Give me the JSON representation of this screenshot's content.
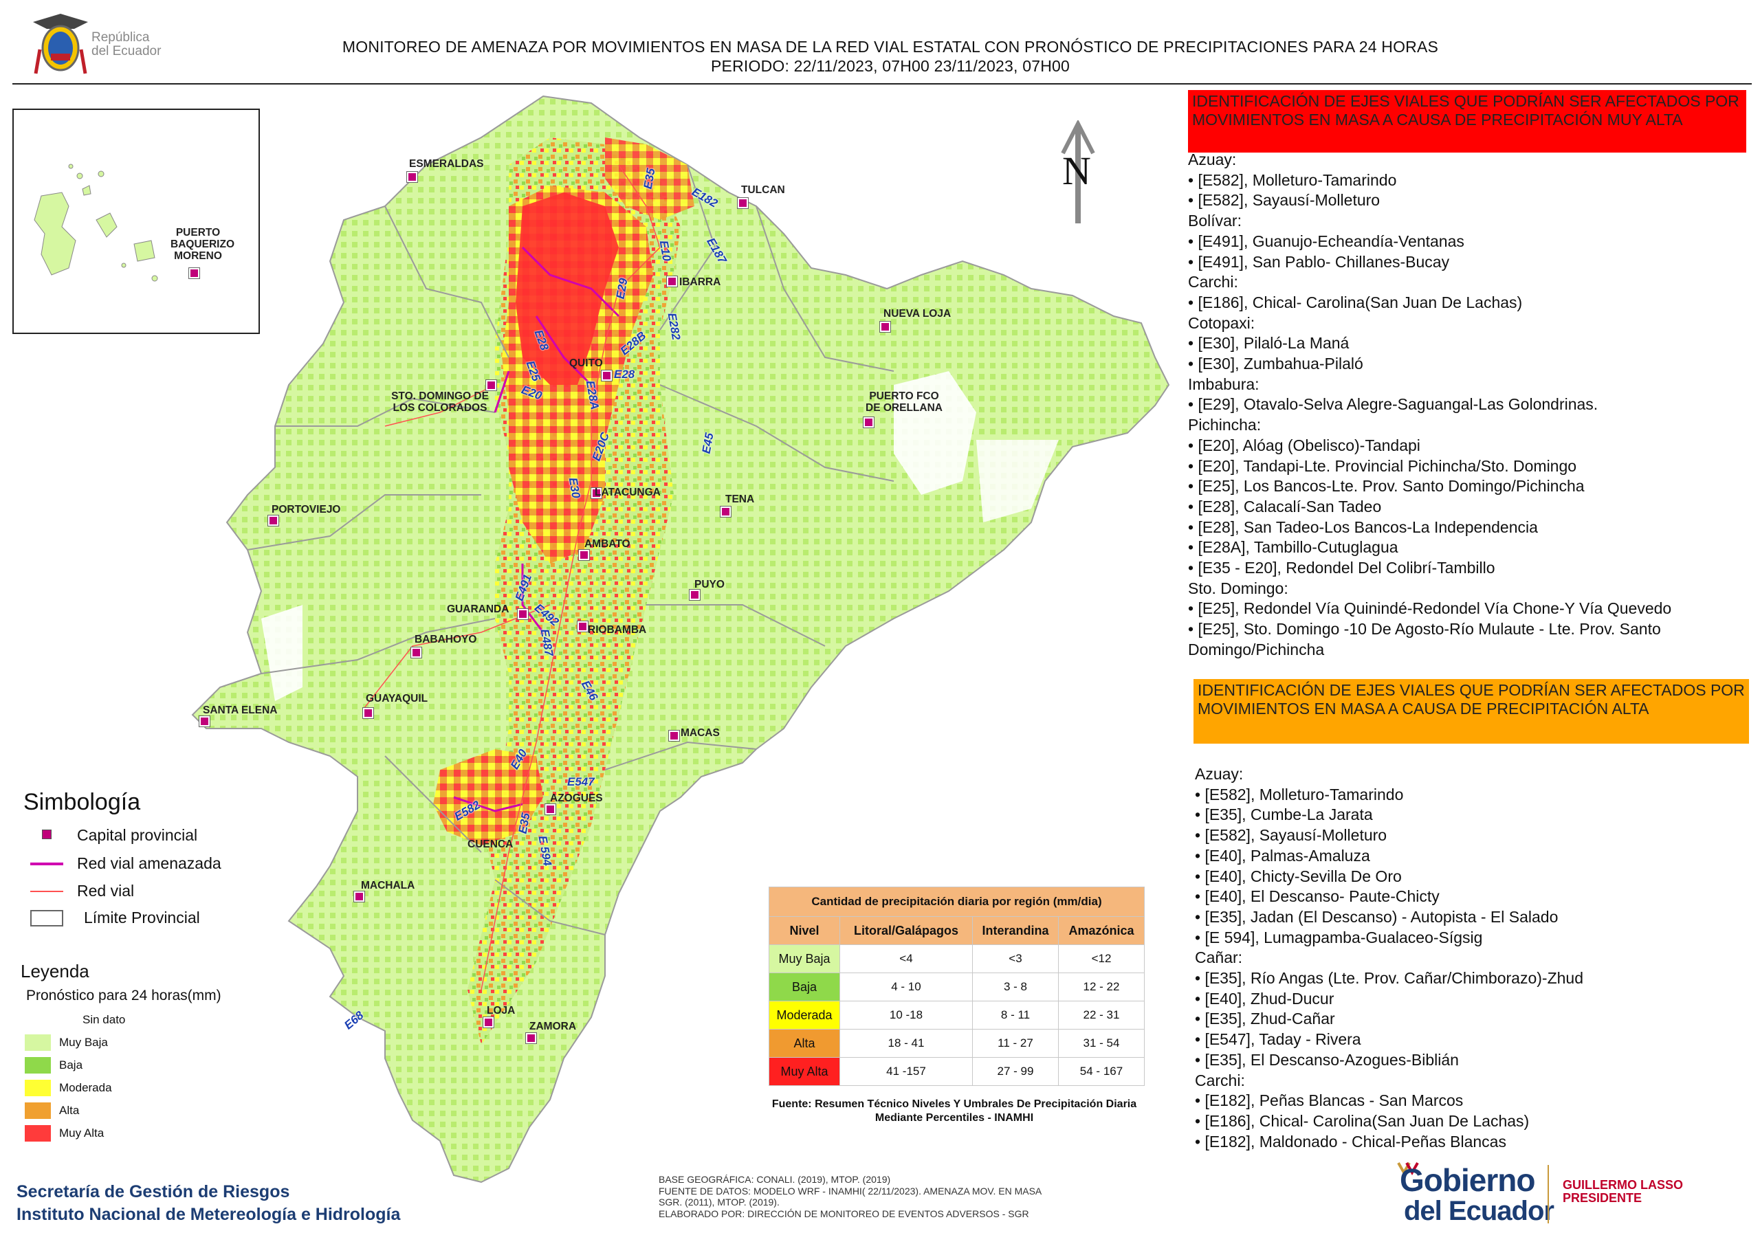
{
  "header": {
    "republica": "República\ndel Ecuador",
    "title_line1": "MONITOREO DE AMENAZA POR MOVIMIENTOS EN MASA DE LA RED VIAL  ESTATAL  CON PRONÓSTICO  DE  PRECIPITACIONES PARA 24 HORAS",
    "title_line2": "PERIODO: 22/11/2023, 07H00 23/11/2023, 07H00"
  },
  "north_label": "N",
  "cities": {
    "esmeraldas": "ESMERALDAS",
    "tulcan": "TULCAN",
    "ibarra": "IBARRA",
    "nueva_loja": "NUEVA LOJA",
    "quito": "QUITO",
    "sto_domingo": "STO. DOMINGO DE\nLOS COLORADOS",
    "puerto_orellana": "PUERTO FCO\nDE ORELLANA",
    "latacunga": "LATACUNGA",
    "tena": "TENA",
    "portoviejo": "PORTOVIEJO",
    "ambato": "AMBATO",
    "puyo": "PUYO",
    "guaranda": "GUARANDA",
    "riobamba": "RIOBAMBA",
    "babahoyo": "BABAHOYO",
    "guayaquil": "GUAYAQUIL",
    "santa_elena": "SANTA ELENA",
    "macas": "MACAS",
    "azogues": "AZOGUES",
    "cuenca": "CUENCA",
    "machala": "MACHALA",
    "loja": "LOJA",
    "zamora": "ZAMORA",
    "puerto_baquerizo": "PUERTO\nBAQUERIZO\nMORENO"
  },
  "roads": {
    "e35a": "E35",
    "e182": "E182",
    "e10": "E10",
    "e187": "E187",
    "e29": "E29",
    "e282": "E282",
    "e28b": "E28B",
    "e28": "E28",
    "e25": "E25",
    "e20": "E20",
    "e28a": "E28A",
    "e26": "E28",
    "e20c": "E20C",
    "e30a": "E30",
    "e45": "E45",
    "e491": "E491",
    "e492": "E492",
    "e487": "E487",
    "e46": "E46",
    "e40": "E40",
    "e547": "E547",
    "e582": "E582",
    "e35b": "E35",
    "e594": "E 594",
    "e68": "E68"
  },
  "symbology": {
    "title": "Simbología",
    "items": [
      "Capital provincial",
      "Red vial amenazada",
      "Red vial",
      "Límite Provincial"
    ]
  },
  "legend": {
    "title": "Leyenda",
    "subtitle": "Pronóstico para 24 horas(mm)",
    "items": [
      {
        "label": "Sin dato",
        "color": "#ffffff"
      },
      {
        "label": "Muy Baja",
        "color": "#d6f7a1"
      },
      {
        "label": "Baja",
        "color": "#8fd94a"
      },
      {
        "label": "Moderada",
        "color": "#ffff33"
      },
      {
        "label": "Alta",
        "color": "#f0a030"
      },
      {
        "label": "Muy Alta",
        "color": "#ff3b3b"
      }
    ]
  },
  "precip_table": {
    "caption": "Cantidad de precipitación diaria por región (mm/dia)",
    "headers": [
      "Nivel",
      "Litoral/Galápagos",
      "Interandina",
      "Amazónica"
    ],
    "rows": [
      {
        "level": "Muy Baja",
        "color": "#d6f7a1",
        "values": [
          "<4",
          "<3",
          "<12"
        ]
      },
      {
        "level": "Baja",
        "color": "#8fd94a",
        "values": [
          "4 - 10",
          "3 - 8",
          "12 - 22"
        ]
      },
      {
        "level": "Moderada",
        "color": "#ffff00",
        "values": [
          "10 -18",
          "8 - 11",
          "22 - 31"
        ]
      },
      {
        "level": "Alta",
        "color": "#f09a30",
        "values": [
          "18 - 41",
          "11 - 27",
          "31 - 54"
        ]
      },
      {
        "level": "Muy Alta",
        "color": "#ff2020",
        "values": [
          "41 -157",
          "27 - 99",
          "54 - 167"
        ]
      }
    ],
    "source": "Fuente: Resumen Técnico Niveles Y Umbrales De Precipitación Diaria Mediante Percentiles - INAMHI"
  },
  "muy_alta": {
    "heading": "IDENTIFICACIÓN DE EJES VIALES QUE PODRÍAN SER AFECTADOS POR MOVIMIENTOS EN MASA A CAUSA DE PRECIPITACIÓN MUY ALTA",
    "lines": [
      "Azuay:",
      "• [E582], Molleturo-Tamarindo",
      "• [E582], Sayausí-Molleturo",
      "Bolívar:",
      "• [E491], Guanujo-Echeandía-Ventanas",
      "• [E491], San Pablo- Chillanes-Bucay",
      "Carchi:",
      "• [E186], Chical- Carolina(San Juan De Lachas)",
      "Cotopaxi:",
      "• [E30], Pilaló-La Maná",
      "• [E30], Zumbahua-Pilaló",
      "Imbabura:",
      "• [E29], Otavalo-Selva Alegre-Saguangal-Las Golondrinas.",
      "Pichincha:",
      "• [E20], Alóag (Obelisco)-Tandapi",
      "• [E20], Tandapi-Lte. Provincial Pichincha/Sto. Domingo",
      "• [E25], Los Bancos-Lte. Prov. Santo Domingo/Pichincha",
      "• [E28], Calacalí-San Tadeo",
      "• [E28], San Tadeo-Los Bancos-La Independencia",
      "• [E28A], Tambillo-Cutuglagua",
      "• [E35 - E20], Redondel Del Colibrí-Tambillo",
      "Sto. Domingo:",
      "• [E25], Redondel Vía Quinindé-Redondel Vía Chone-Y Vía Quevedo",
      "• [E25], Sto. Domingo -10 De Agosto-Río Mulaute - Lte. Prov. Santo",
      "Domingo/Pichincha"
    ]
  },
  "alta": {
    "heading": "IDENTIFICACIÓN DE EJES VIALES QUE PODRÍAN SER AFECTADOS POR MOVIMIENTOS EN MASA A CAUSA DE PRECIPITACIÓN  ALTA",
    "lines": [
      "Azuay:",
      "• [E582], Molleturo-Tamarindo",
      "• [E35], Cumbe-La Jarata",
      "• [E582], Sayausí-Molleturo",
      "• [E40], Palmas-Amaluza",
      "• [E40], Chicty-Sevilla De Oro",
      "• [E40], El Descanso- Paute-Chicty",
      "• [E35], Jadan (El Descanso) -  Autopista - El Salado",
      "• [E 594], Lumagpamba-Gualaceo-Sígsig",
      "Cañar:",
      "• [E35], Río Angas (Lte. Prov. Cañar/Chimborazo)-Zhud",
      "• [E40], Zhud-Ducur",
      "• [E35], Zhud-Cañar",
      "• [E547], Taday - Rivera",
      "• [E35], El Descanso-Azogues-Biblián",
      "Carchi:",
      "• [E182], Peñas Blancas - San Marcos",
      "• [E186], Chical- Carolina(San Juan De Lachas)",
      "• [E182], Maldonado - Chical-Peñas Blancas"
    ]
  },
  "footer": {
    "org_line1": "Secretaría de Gestión de Riesgos",
    "org_line2": "Instituto Nacional de Metereología e Hidrología",
    "credits_line1": "BASE GEOGRÁFICA: CONALI. (2019), MTOP. (2019)",
    "credits_line2": "FUENTE DE DATOS: MODELO WRF - INAMHI( 22/11/2023).  AMENAZA MOV. EN MASA",
    "credits_line3": "SGR. (2011), MTOP. (2019).",
    "credits_line4": "ELABORADO POR: DIRECCIÓN DE MONITOREO DE EVENTOS ADVERSOS - SGR",
    "gobierno_line1": "Gobierno",
    "gobierno_line2": "del Ecuador",
    "president_name": "GUILLERMO LASSO",
    "president_title": "PRESIDENTE"
  }
}
